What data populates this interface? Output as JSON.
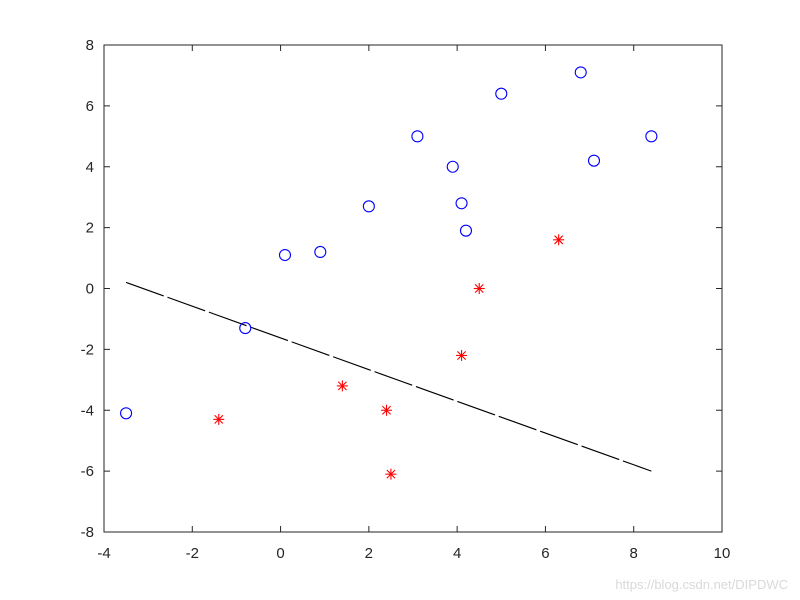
{
  "chart_data": {
    "type": "scatter",
    "title": "",
    "xlabel": "",
    "ylabel": "",
    "xlim": [
      -4,
      10
    ],
    "ylim": [
      -8,
      8
    ],
    "xticks": [
      -4,
      -2,
      0,
      2,
      4,
      6,
      8,
      10
    ],
    "yticks": [
      -8,
      -6,
      -4,
      -2,
      0,
      2,
      4,
      6,
      8
    ],
    "grid": false,
    "series": [
      {
        "marker": "circle",
        "color": "#0000ff",
        "points": [
          [
            -3.5,
            -4.1
          ],
          [
            -0.8,
            -1.3
          ],
          [
            0.1,
            1.1
          ],
          [
            0.9,
            1.2
          ],
          [
            2.0,
            2.7
          ],
          [
            3.1,
            5.0
          ],
          [
            3.9,
            4.0
          ],
          [
            4.1,
            2.8
          ],
          [
            4.2,
            1.9
          ],
          [
            5.0,
            6.4
          ],
          [
            6.8,
            7.1
          ],
          [
            7.1,
            4.2
          ],
          [
            8.4,
            5.0
          ]
        ]
      },
      {
        "marker": "asterisk",
        "color": "#ff0000",
        "points": [
          [
            -1.4,
            -4.3
          ],
          [
            1.4,
            -3.2
          ],
          [
            2.4,
            -4.0
          ],
          [
            2.5,
            -6.1
          ],
          [
            4.1,
            -2.2
          ],
          [
            4.5,
            0.0
          ],
          [
            6.3,
            1.6
          ]
        ]
      }
    ],
    "line": {
      "style": "dashed",
      "color": "#000000",
      "points": [
        [
          -3.5,
          0.2
        ],
        [
          8.4,
          -6.0
        ]
      ]
    }
  },
  "watermark": "https://blog.csdn.net/DIPDWC"
}
